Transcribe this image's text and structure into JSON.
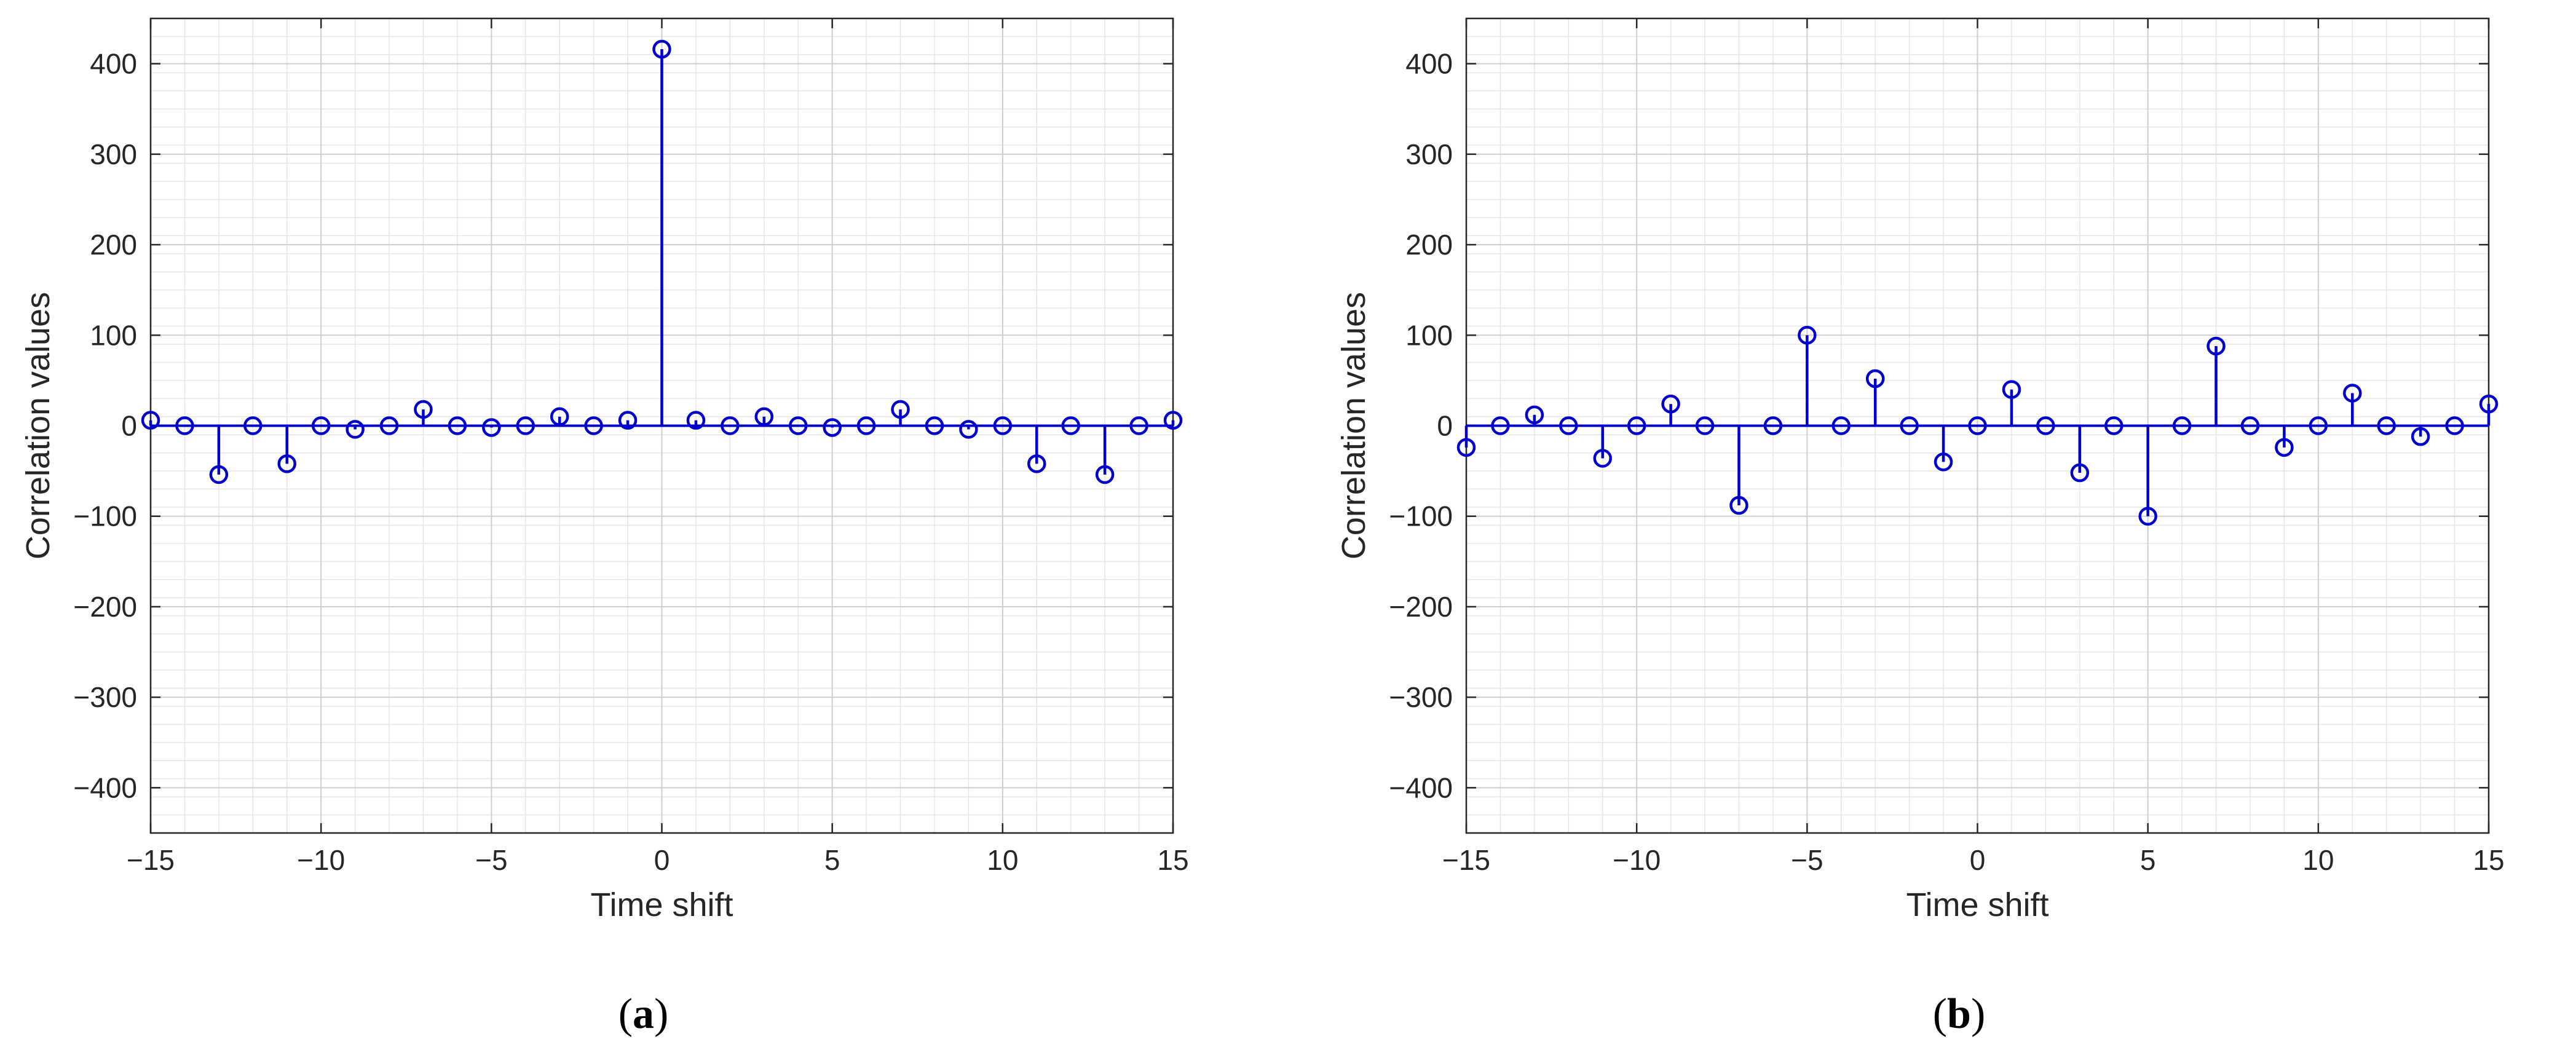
{
  "chart_data": [
    {
      "type": "stem",
      "caption": {
        "open": "(",
        "letter": "a",
        "close": ")"
      },
      "xlabel": "Time shift",
      "ylabel": "Correlation values",
      "xlim": [
        -15,
        15
      ],
      "ylim": [
        -450,
        450
      ],
      "xticks": [
        -15,
        -10,
        -5,
        0,
        5,
        10,
        15
      ],
      "xtick_labels": [
        "−15",
        "−10",
        "−5",
        "0",
        "5",
        "10",
        "15"
      ],
      "yticks": [
        -400,
        -300,
        -200,
        -100,
        0,
        100,
        200,
        300,
        400
      ],
      "ytick_labels": [
        "−400",
        "−300",
        "−200",
        "−100",
        "0",
        "100",
        "200",
        "300",
        "400"
      ],
      "grid": true,
      "minor_grid": true,
      "color": "#0000cc",
      "x": [
        -15,
        -14,
        -13,
        -12,
        -11,
        -10,
        -9,
        -8,
        -7,
        -6,
        -5,
        -4,
        -3,
        -2,
        -1,
        0,
        1,
        2,
        3,
        4,
        5,
        6,
        7,
        8,
        9,
        10,
        11,
        12,
        13,
        14,
        15
      ],
      "y": [
        6,
        0,
        -54,
        0,
        -42,
        0,
        -4,
        0,
        18,
        0,
        -2,
        0,
        10,
        0,
        6,
        416,
        6,
        0,
        10,
        0,
        -2,
        0,
        18,
        0,
        -4,
        0,
        -42,
        0,
        -54,
        0,
        6
      ]
    },
    {
      "type": "stem",
      "caption": {
        "open": "(",
        "letter": "b",
        "close": ")"
      },
      "xlabel": "Time shift",
      "ylabel": "Correlation values",
      "xlim": [
        -15,
        15
      ],
      "ylim": [
        -450,
        450
      ],
      "xticks": [
        -15,
        -10,
        -5,
        0,
        5,
        10,
        15
      ],
      "xtick_labels": [
        "−15",
        "−10",
        "−5",
        "0",
        "5",
        "10",
        "15"
      ],
      "yticks": [
        -400,
        -300,
        -200,
        -100,
        0,
        100,
        200,
        300,
        400
      ],
      "ytick_labels": [
        "−400",
        "−300",
        "−200",
        "−100",
        "0",
        "100",
        "200",
        "300",
        "400"
      ],
      "grid": true,
      "minor_grid": true,
      "color": "#0000cc",
      "x": [
        -15,
        -14,
        -13,
        -12,
        -11,
        -10,
        -9,
        -8,
        -7,
        -6,
        -5,
        -4,
        -3,
        -2,
        -1,
        0,
        1,
        2,
        3,
        4,
        5,
        6,
        7,
        8,
        9,
        10,
        11,
        12,
        13,
        14,
        15
      ],
      "y": [
        -24,
        0,
        12,
        0,
        -36,
        0,
        24,
        0,
        -88,
        0,
        100,
        0,
        52,
        0,
        -40,
        0,
        40,
        0,
        -52,
        0,
        -100,
        0,
        88,
        0,
        -24,
        0,
        36,
        0,
        -12,
        0,
        24
      ]
    }
  ]
}
